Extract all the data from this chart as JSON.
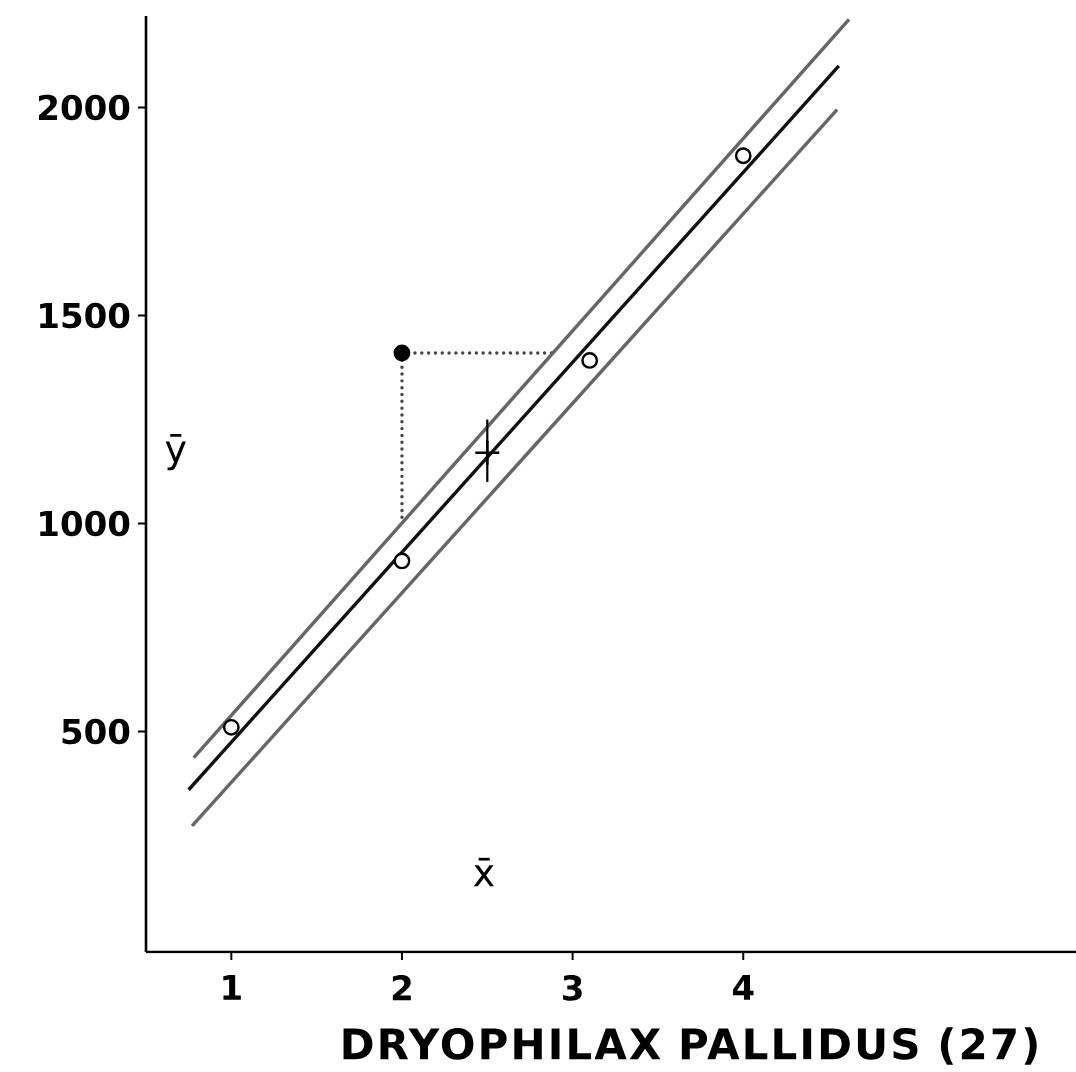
{
  "chart_data": {
    "type": "scatter",
    "xlabel": "DRYOPHILAX PALLIDUS (27)",
    "xlim": [
      0.5,
      5.95
    ],
    "xticks": [
      1,
      2,
      3,
      4
    ],
    "ylim": [
      -30,
      2220
    ],
    "yticks": [
      500,
      1000,
      1500,
      2000
    ],
    "annotations": [
      "x̄",
      "ȳ"
    ],
    "series": [
      {
        "type": "line",
        "color": "#444444",
        "line_style": "dotted",
        "x": [
          2,
          2,
          2.91
        ],
        "values": [
          1015,
          1410,
          1410
        ]
      },
      {
        "type": "line",
        "color": "#111111",
        "x": [
          0.75,
          4.56
        ],
        "values": [
          360,
          2100
        ]
      },
      {
        "type": "line",
        "color": "#666666",
        "x": [
          0.78,
          4.62
        ],
        "values": [
          437,
          2212
        ]
      },
      {
        "type": "line",
        "color": "#666666",
        "x": [
          0.77,
          4.55
        ],
        "values": [
          273,
          1995
        ]
      },
      {
        "color": "#ffffff",
        "marker": "circle",
        "x": [
          1,
          2,
          3.1,
          4
        ],
        "values": [
          510,
          910,
          1392,
          1884
        ]
      },
      {
        "color": "#000000",
        "marker": "circle",
        "x": [
          2
        ],
        "values": [
          1410
        ]
      },
      {
        "color": "#000000",
        "marker": "cross",
        "x": [
          2.5
        ],
        "values": [
          1170
        ],
        "errors": [
          [
            1100,
            1250
          ]
        ]
      }
    ]
  }
}
